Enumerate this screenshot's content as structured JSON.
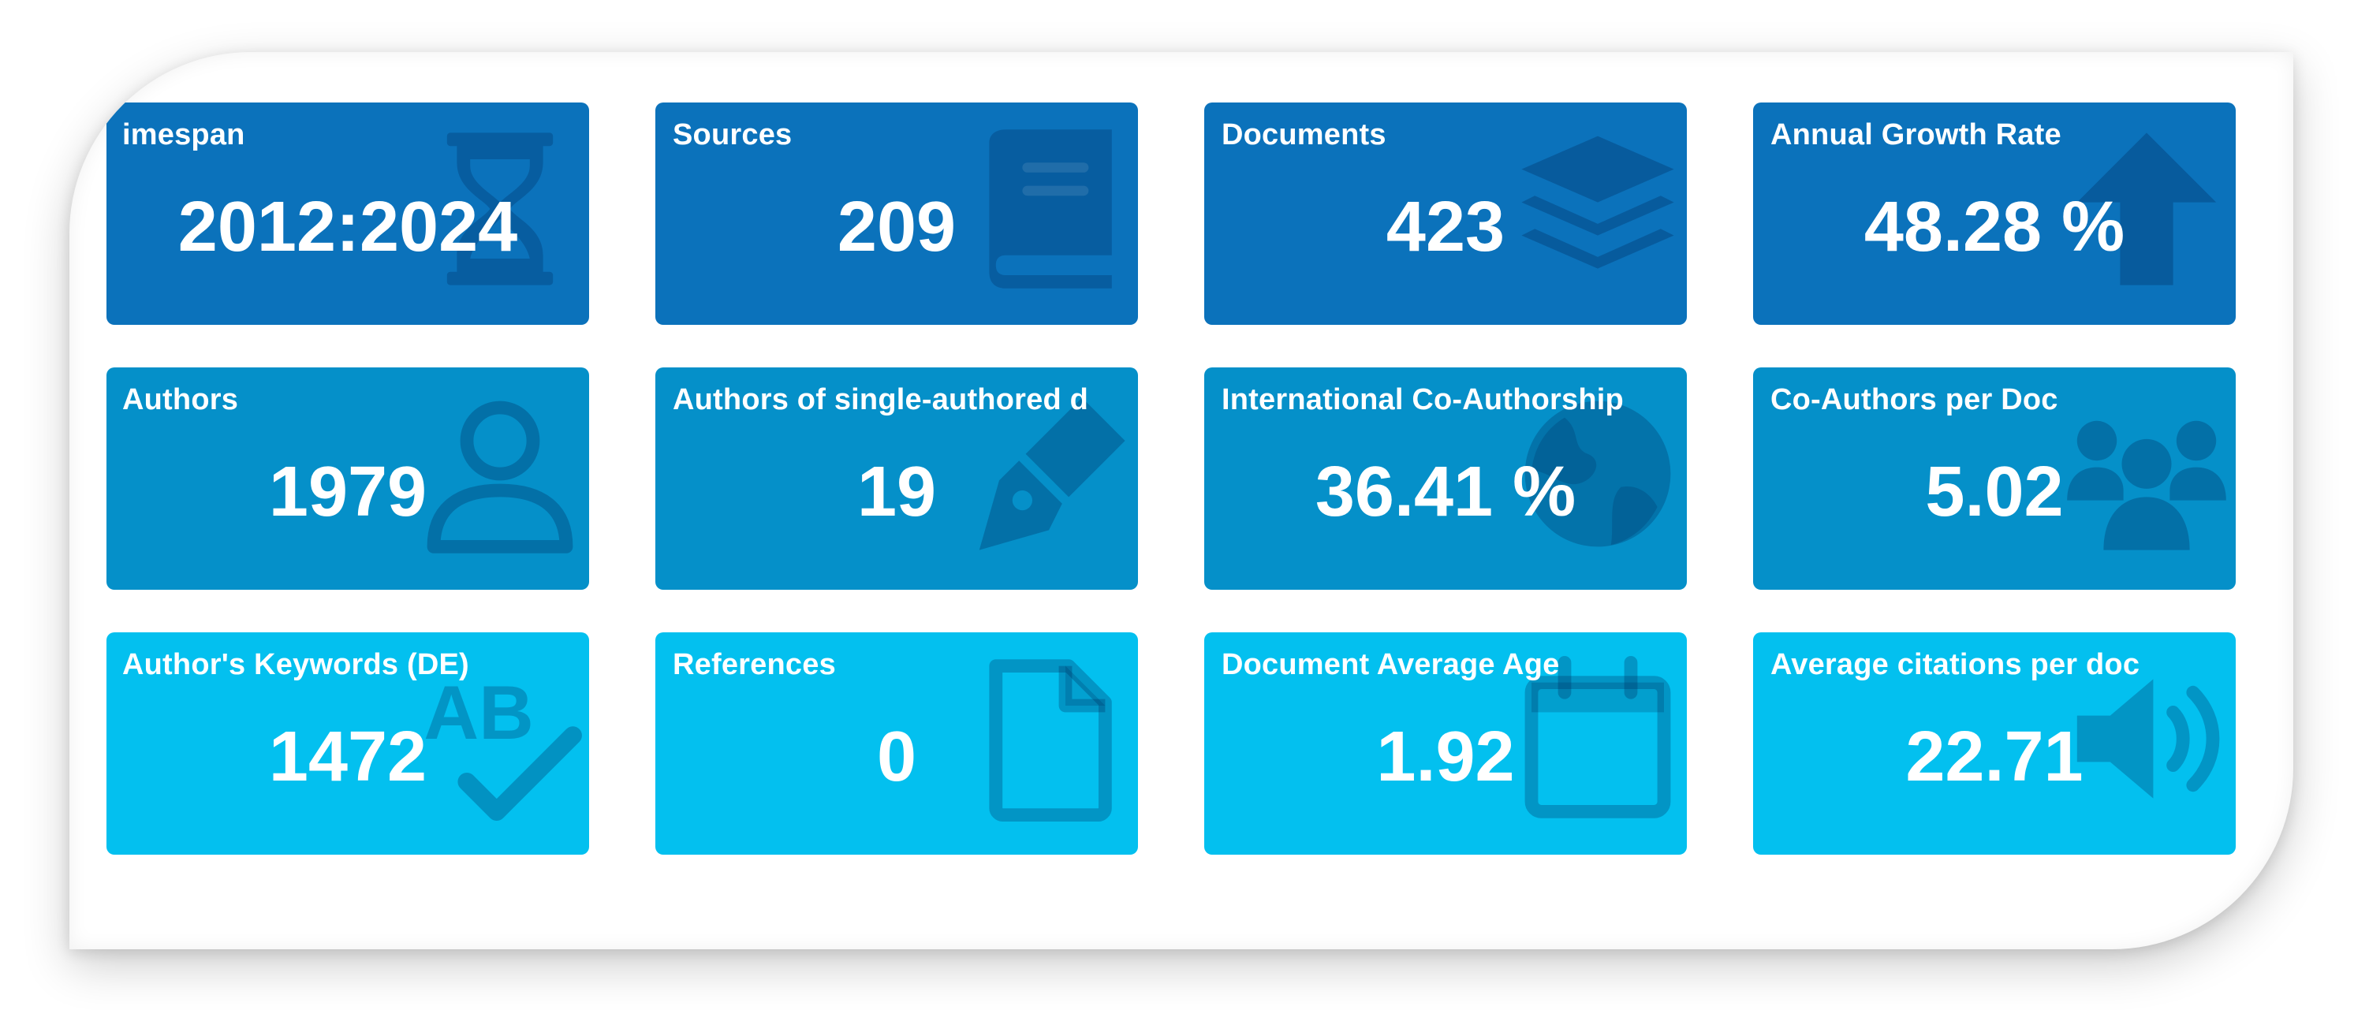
{
  "cards": [
    {
      "title": "imespan",
      "value": "2012:2024",
      "icon": "hourglass-icon",
      "row": 1
    },
    {
      "title": "Sources",
      "value": "209",
      "icon": "book-icon",
      "row": 1
    },
    {
      "title": "Documents",
      "value": "423",
      "icon": "layers-icon",
      "row": 1
    },
    {
      "title": "Annual Growth Rate",
      "value": "48.28 %",
      "icon": "arrow-up-icon",
      "row": 1
    },
    {
      "title": "Authors",
      "value": "1979",
      "icon": "user-icon",
      "row": 2
    },
    {
      "title": "Authors of single-authored d",
      "value": "19",
      "icon": "pen-nib-icon",
      "row": 2
    },
    {
      "title": "International Co-Authorship",
      "value": "36.41 %",
      "icon": "globe-icon",
      "row": 2
    },
    {
      "title": "Co-Authors per Doc",
      "value": "5.02",
      "icon": "users-icon",
      "row": 2
    },
    {
      "title": "Author's Keywords (DE)",
      "value": "1472",
      "icon": "spell-check-icon",
      "row": 3
    },
    {
      "title": "References",
      "value": "0",
      "icon": "file-icon",
      "row": 3
    },
    {
      "title": "Document Average Age",
      "value": "1.92",
      "icon": "calendar-icon",
      "row": 3
    },
    {
      "title": "Average citations per doc",
      "value": "22.71",
      "icon": "volume-icon",
      "row": 3
    }
  ],
  "colors": {
    "row1": "#0b72bb",
    "row2": "#0590c9",
    "row3": "#03c0ef",
    "icon_overlay": "rgba(0,40,90,0.28)"
  }
}
